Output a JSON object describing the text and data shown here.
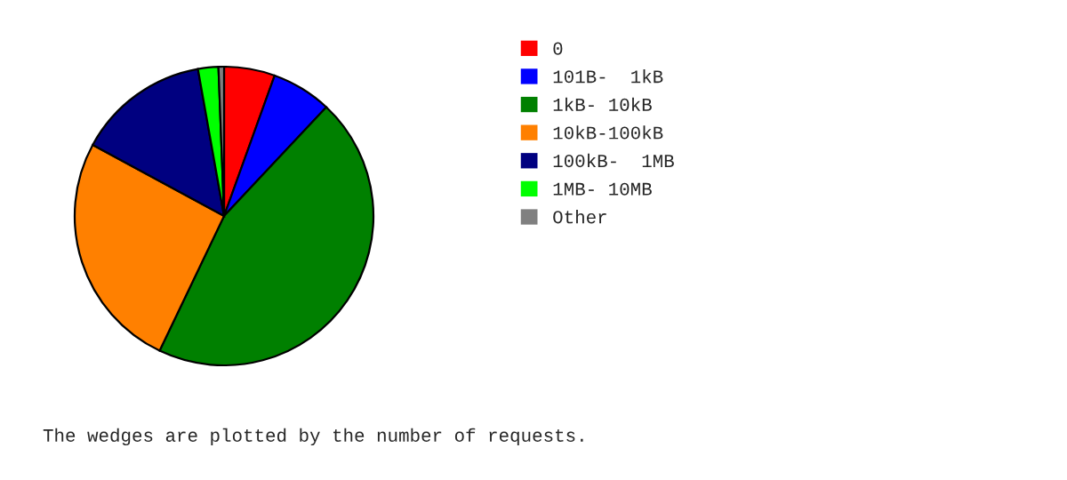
{
  "chart_data": {
    "type": "pie",
    "categories": [
      "0",
      "101B-  1kB",
      "1kB- 10kB",
      "10kB-100kB",
      "100kB-  1MB",
      "1MB- 10MB",
      "Other"
    ],
    "values": [
      5.5,
      6.5,
      45.1,
      25.8,
      14.3,
      2.2,
      0.6
    ],
    "colors": [
      "#ff0000",
      "#0000ff",
      "#008000",
      "#ff8000",
      "#000080",
      "#00ff00",
      "#808080"
    ],
    "legend": "right",
    "annotations": [
      "The wedges are plotted by the number of requests."
    ]
  }
}
